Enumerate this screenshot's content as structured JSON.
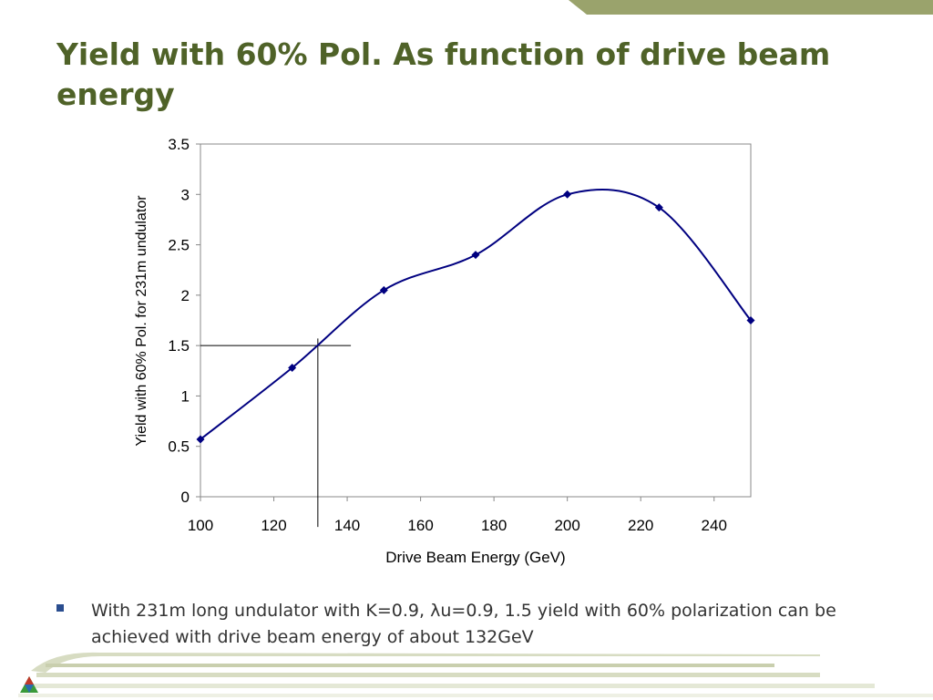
{
  "slide": {
    "title": "Yield with 60% Pol. As function of drive beam energy",
    "bullet_part1": "With 231m long undulator with K=0.9, ",
    "bullet_symbol": "λ",
    "bullet_part2": "u=0.9, 1.5 yield with 60% polarization can be achieved with drive beam energy of about 132GeV"
  },
  "colors": {
    "title": "#4f6228",
    "series_line": "#000080",
    "bullet_marker": "#2a4d8f",
    "top_bar": "#9aa36c"
  },
  "icons": {
    "logo": "tricolor-triangle-logo-icon"
  },
  "chart_data": {
    "type": "line",
    "smooth": true,
    "xlabel": "Drive Beam Energy (GeV)",
    "ylabel": "Yield with 60% Pol. for 231m undulator",
    "xlim": [
      100,
      250
    ],
    "ylim": [
      0,
      3.5
    ],
    "xticks": [
      100,
      120,
      140,
      160,
      180,
      200,
      220,
      240
    ],
    "yticks": [
      0,
      0.5,
      1,
      1.5,
      2,
      2.5,
      3,
      3.5
    ],
    "grid": false,
    "legend": "none",
    "series": [
      {
        "marker": "diamond",
        "x": [
          100,
          125,
          150,
          175,
          200,
          225,
          250
        ],
        "y": [
          0.57,
          1.28,
          2.05,
          2.4,
          3.0,
          2.87,
          1.75
        ]
      }
    ],
    "reference_lines": [
      {
        "orientation": "horizontal",
        "y": 1.5,
        "x_from": 100,
        "x_to": 141
      },
      {
        "orientation": "vertical",
        "x": 132,
        "y_from": -0.3,
        "y_to": 1.57
      }
    ]
  }
}
